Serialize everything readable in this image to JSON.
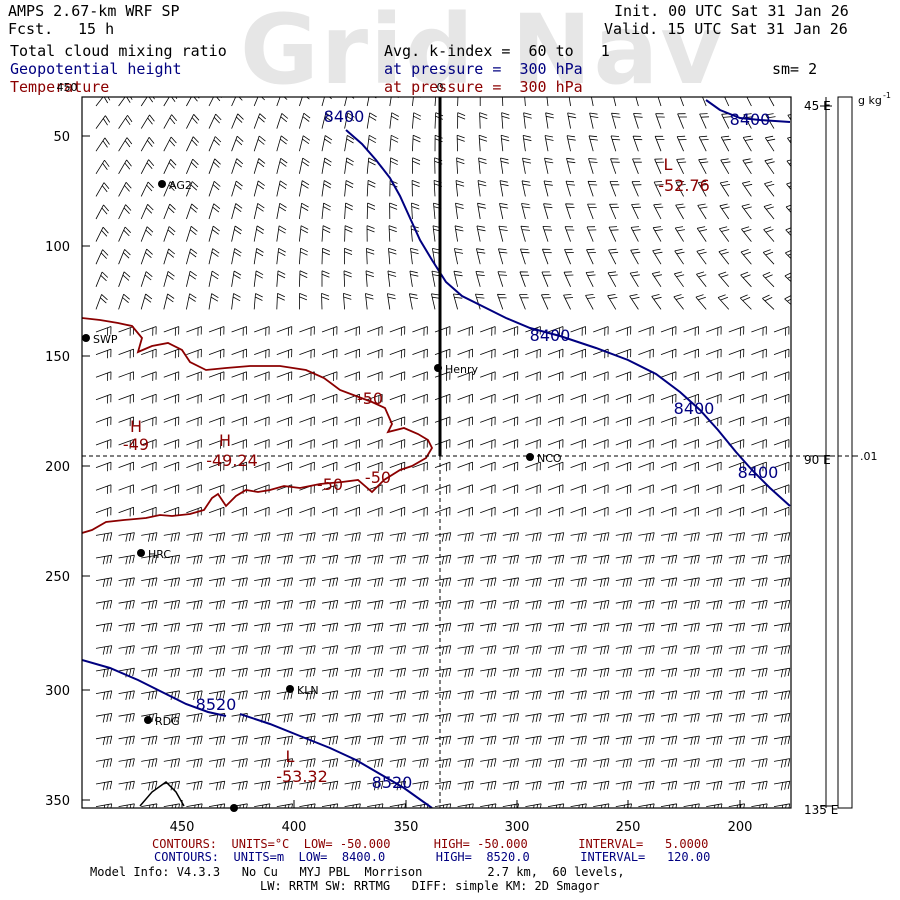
{
  "watermark": "Grid Nav",
  "header": {
    "model": "AMPS 2.67-km WRF SP",
    "fcst_label": "Fcst.",
    "fcst_value": "15 h",
    "init": "Init. 00 UTC Sat 31 Jan 26",
    "valid": "Valid. 15 UTC Sat 31 Jan 26",
    "field1": "Total cloud mixing ratio",
    "field2": "Geopotential height",
    "field3": "Temperature",
    "avg": "Avg. k-index =  60 to   1",
    "press2": "at pressure =  300 hPa",
    "press3": "at pressure =  300 hPa",
    "sm": "sm= 2"
  },
  "colors": {
    "height": "#000080",
    "temperature": "#8b0000",
    "barb": "#000000"
  },
  "map": {
    "x_ticks": [
      "450",
      "400",
      "350",
      "300",
      "250",
      "200"
    ],
    "y_ticks": [
      "50",
      "100",
      "150",
      "200",
      "250",
      "300",
      "350"
    ],
    "top_marker": "0",
    "top_left_label": "450",
    "right_labels": [
      "45 E",
      "90 E",
      "135 E"
    ],
    "colorbar_unit": "g kg",
    "colorbar_unit_sup": "-1",
    "colorbar_value": ".01",
    "stations": [
      {
        "name": "AG2"
      },
      {
        "name": "SWP"
      },
      {
        "name": "Henry"
      },
      {
        "name": "NCO"
      },
      {
        "name": "HRC"
      },
      {
        "name": "KLN"
      },
      {
        "name": "RDG"
      }
    ],
    "height_labels": [
      "8400",
      "8400",
      "8400",
      "8400",
      "8400",
      "8520",
      "8520"
    ],
    "temp_labels": [
      "-50",
      "-50",
      "-50",
      "-49",
      "-49.24",
      "-52.76",
      "-53.32"
    ],
    "extrema_labels": [
      "H",
      "H",
      "L",
      "L"
    ]
  },
  "footer": {
    "row1_red": "CONTOURS:  UNITS=°C  LOW= -50.000      HIGH= -50.000       INTERVAL=   5.0000",
    "row2_blue": "CONTOURS:  UNITS=m  LOW=  8400.0       HIGH=  8520.0       INTERVAL=   120.00",
    "row3": "Model Info: V4.3.3   No Cu   MYJ PBL  Morrison         2.7 km,  60 levels,",
    "row4": "LW: RRTM SW: RRTMG   DIFF: simple KM: 2D Smagor"
  }
}
